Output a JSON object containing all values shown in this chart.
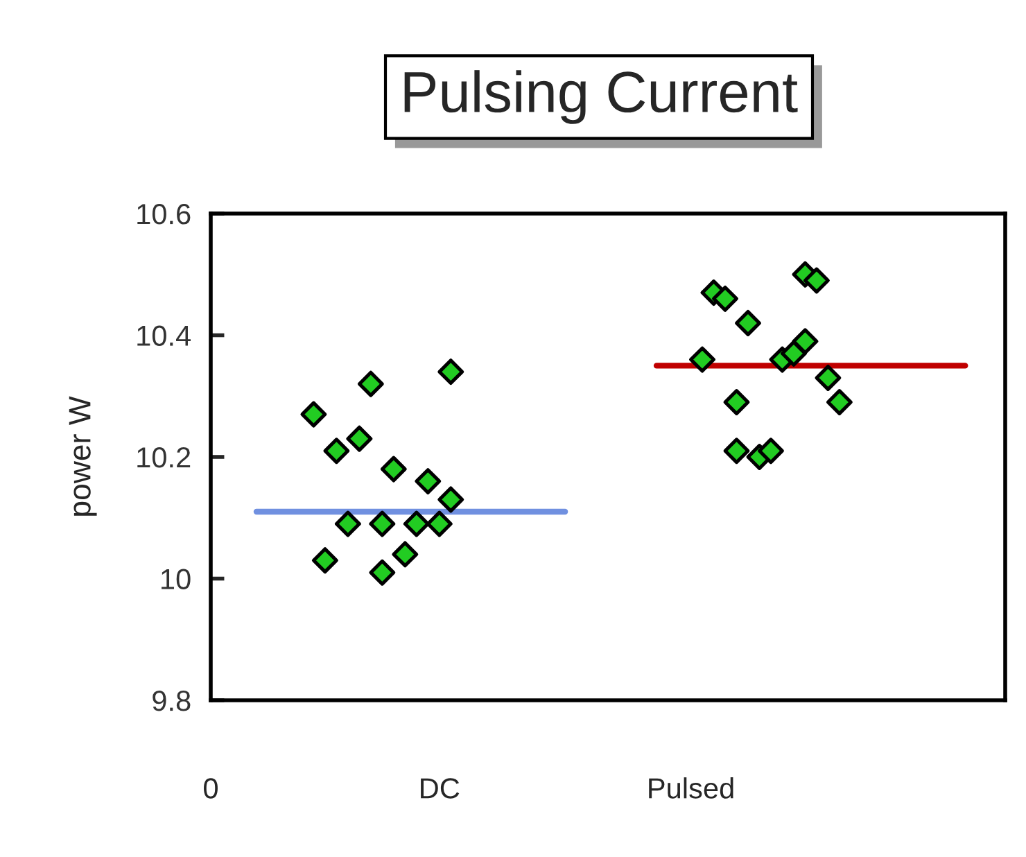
{
  "chart_data": {
    "type": "scatter",
    "title": "Pulsing Current",
    "ylabel": "power W",
    "categories": [
      "0",
      null,
      null,
      null,
      null,
      null,
      null,
      null,
      null,
      null,
      null,
      null,
      null,
      null,
      null,
      null,
      null,
      null,
      null,
      null,
      "DC",
      null,
      null,
      null,
      null,
      null,
      null,
      null,
      null,
      null,
      null,
      null,
      null,
      null,
      null,
      null,
      null,
      null,
      null,
      null,
      null,
      null,
      "Pulsed",
      null,
      null,
      null,
      null,
      null,
      null,
      null,
      null,
      null,
      null,
      null,
      null,
      null,
      null,
      null,
      null,
      null,
      null,
      null,
      null,
      null,
      null,
      null,
      null,
      null,
      null,
      null
    ],
    "ylim": [
      9.8,
      10.6
    ],
    "yticks": [
      9.8,
      10,
      10.2,
      10.4,
      10.6
    ],
    "grid": false,
    "series": [
      {
        "color": "#22cc22",
        "marker": "diamond",
        "values": [
          null,
          null,
          null,
          null,
          null,
          null,
          null,
          null,
          null,
          10.27,
          10.03,
          10.21,
          10.09,
          10.23,
          10.32,
          10.09,
          10.18,
          10.04,
          10.09,
          10.16,
          10.09,
          10.34,
          null,
          null,
          null,
          null,
          null,
          null,
          null,
          null,
          null,
          null,
          null,
          null,
          null,
          null,
          null,
          null,
          null,
          null,
          null,
          null,
          null,
          10.36,
          10.47,
          10.46,
          10.29,
          10.42,
          10.2,
          10.21,
          10.36,
          10.37,
          10.5,
          10.49,
          10.33,
          10.29,
          null,
          null,
          null,
          null,
          null,
          null,
          null,
          null,
          null,
          null,
          null,
          null,
          null,
          null
        ]
      },
      {
        "color": "#22cc22",
        "marker": "diamond",
        "values": [
          null,
          null,
          null,
          null,
          null,
          null,
          null,
          null,
          null,
          null,
          null,
          null,
          null,
          null,
          null,
          10.01,
          null,
          null,
          null,
          null,
          null,
          10.13,
          null,
          null,
          null,
          null,
          null,
          null,
          null,
          null,
          null,
          null,
          null,
          null,
          null,
          null,
          null,
          null,
          null,
          null,
          null,
          null,
          null,
          null,
          null,
          null,
          10.21,
          null,
          null,
          null,
          null,
          null,
          10.39,
          null,
          null,
          null,
          null,
          null,
          null,
          null,
          null,
          null,
          null,
          null,
          null,
          null,
          null,
          null,
          null,
          null
        ]
      },
      {
        "type": "line",
        "color": "#7090e0",
        "values": [
          null,
          null,
          null,
          null,
          10.11,
          10.11,
          10.11,
          10.11,
          10.11,
          10.11,
          10.11,
          10.11,
          10.11,
          10.11,
          10.11,
          10.11,
          10.11,
          10.11,
          10.11,
          10.11,
          10.11,
          10.11,
          10.11,
          10.11,
          10.11,
          10.11,
          10.11,
          10.11,
          10.11,
          10.11,
          10.11,
          10.11,
          null,
          null,
          null,
          null,
          null,
          null,
          null,
          null,
          null,
          null,
          null,
          null,
          null,
          null,
          null,
          null,
          null,
          null,
          null,
          null,
          null,
          null,
          null,
          null,
          null,
          null,
          null,
          null,
          null,
          null,
          null,
          null,
          null,
          null,
          null,
          null,
          null,
          null
        ]
      },
      {
        "type": "line",
        "color": "#c00000",
        "values": [
          null,
          null,
          null,
          null,
          null,
          null,
          null,
          null,
          null,
          null,
          null,
          null,
          null,
          null,
          null,
          null,
          null,
          null,
          null,
          null,
          null,
          null,
          null,
          null,
          null,
          null,
          null,
          null,
          null,
          null,
          null,
          null,
          null,
          null,
          null,
          null,
          null,
          null,
          null,
          10.35,
          10.35,
          10.35,
          10.35,
          10.35,
          10.35,
          10.35,
          10.35,
          10.35,
          10.35,
          10.35,
          10.35,
          10.35,
          10.35,
          10.35,
          10.35,
          10.35,
          10.35,
          10.35,
          10.35,
          10.35,
          10.35,
          10.35,
          10.35,
          10.35,
          10.35,
          10.35,
          10.35,
          null,
          null,
          null
        ]
      }
    ]
  }
}
